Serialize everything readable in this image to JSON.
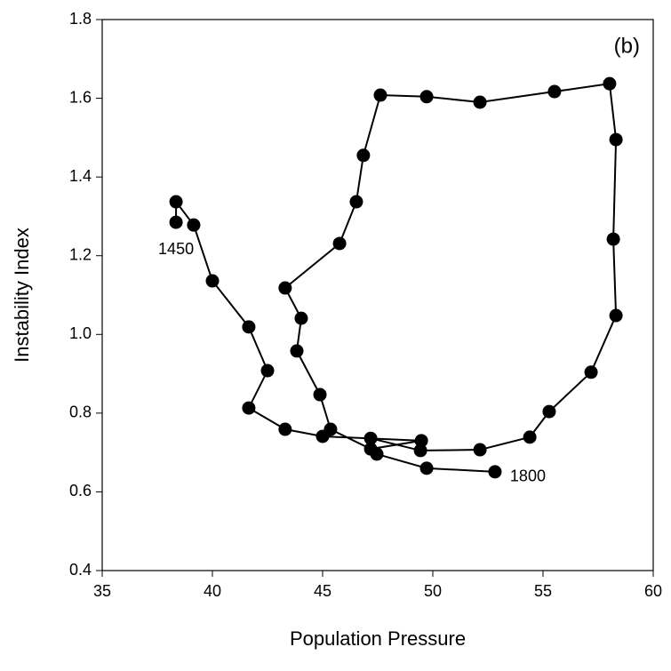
{
  "chart_data": {
    "type": "line",
    "panel_label": "(b)",
    "x_label": "Population Pressure",
    "y_label": "Instability Index",
    "x": [
      38.35,
      38.35,
      39.15,
      40.0,
      41.65,
      42.5,
      41.65,
      43.3,
      45.0,
      49.48,
      47.18,
      45.36,
      44.88,
      43.83,
      44.03,
      43.3,
      45.77,
      46.53,
      46.85,
      47.62,
      49.72,
      52.14,
      55.52,
      58.02,
      58.31,
      58.19,
      58.31,
      57.18,
      55.28,
      54.4,
      52.14,
      49.44,
      47.18,
      47.46,
      49.72,
      52.82
    ],
    "values": [
      1.285,
      1.337,
      1.278,
      1.136,
      1.019,
      0.908,
      0.813,
      0.759,
      0.741,
      0.73,
      0.709,
      0.759,
      0.847,
      0.958,
      1.041,
      1.118,
      1.231,
      1.337,
      1.455,
      1.608,
      1.604,
      1.59,
      1.617,
      1.637,
      1.495,
      1.242,
      1.048,
      0.904,
      0.804,
      0.739,
      0.707,
      0.705,
      0.736,
      0.696,
      0.66,
      0.651
    ],
    "annotations": [
      "1450",
      "1800"
    ],
    "color": "#000000",
    "xlim": [
      35,
      60
    ],
    "xticks": [
      35,
      40,
      45,
      50,
      55,
      60
    ],
    "ylim": [
      0.4,
      1.8
    ],
    "yticks": [
      {
        "value": 0.4,
        "label": "0.4"
      },
      {
        "value": 0.6,
        "label": "0.6"
      },
      {
        "value": 0.8,
        "label": "0.8"
      },
      {
        "value": 1.0,
        "label": "1.0"
      },
      {
        "value": 1.2,
        "label": "1.2"
      },
      {
        "value": 1.4,
        "label": "1.4"
      },
      {
        "value": 1.6,
        "label": "1.6"
      },
      {
        "value": 1.8,
        "label": "1.8"
      }
    ],
    "grid": false
  }
}
